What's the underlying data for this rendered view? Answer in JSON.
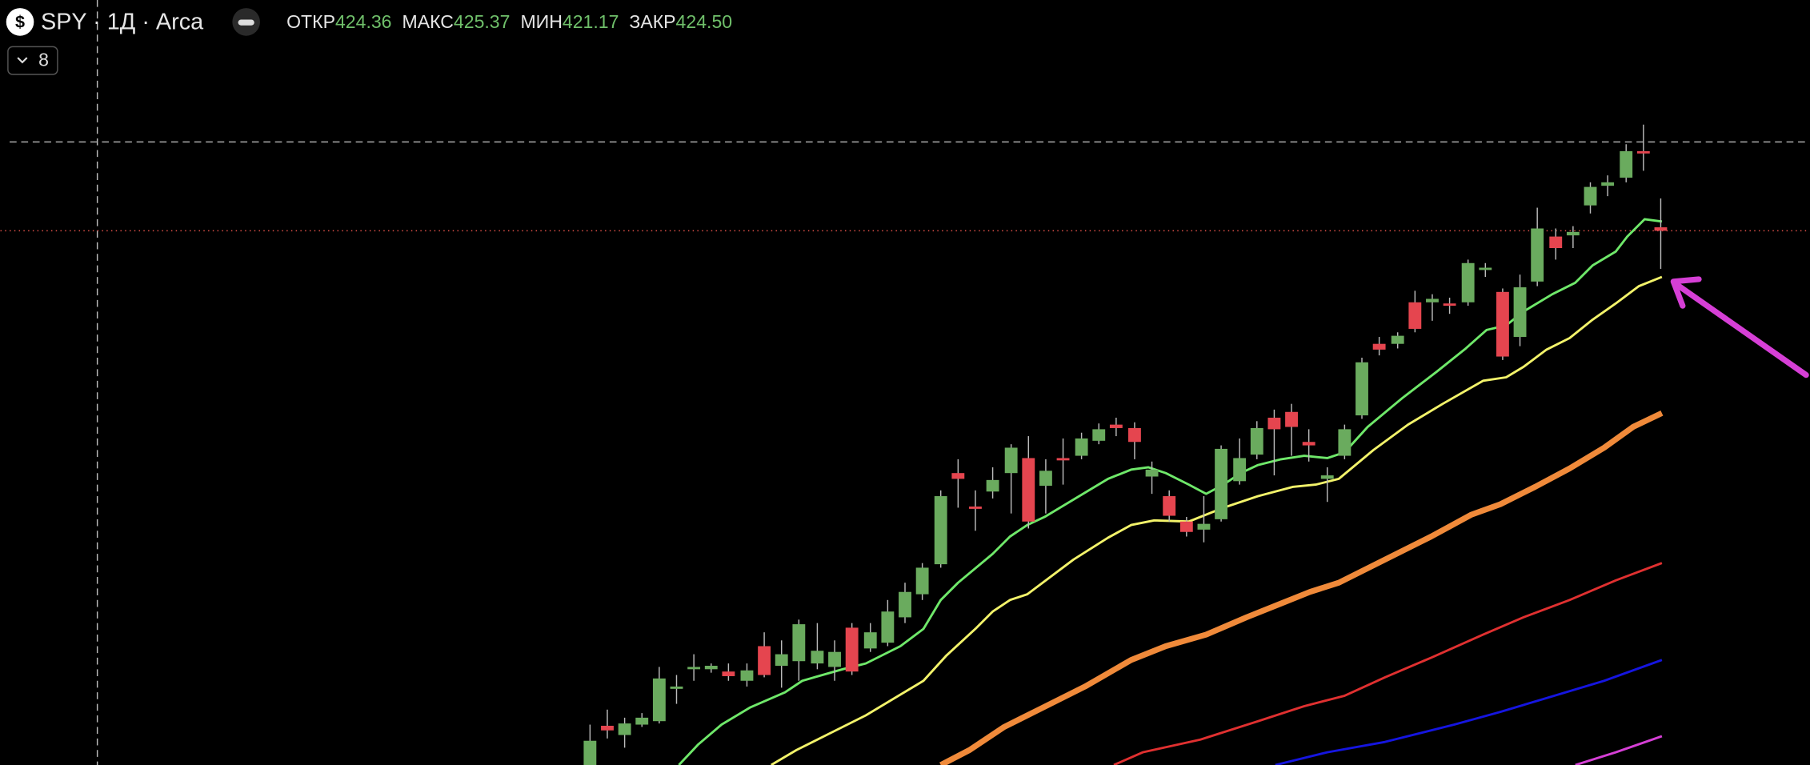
{
  "header": {
    "title": "SPY · 1Д · Arca",
    "ohlc": [
      {
        "label": "ОТКР",
        "value": "424.36"
      },
      {
        "label": "МАКС",
        "value": "425.37"
      },
      {
        "label": "МИН",
        "value": "421.17"
      },
      {
        "label": "ЗАКР",
        "value": "424.50"
      }
    ],
    "indicators": "8"
  }
}
